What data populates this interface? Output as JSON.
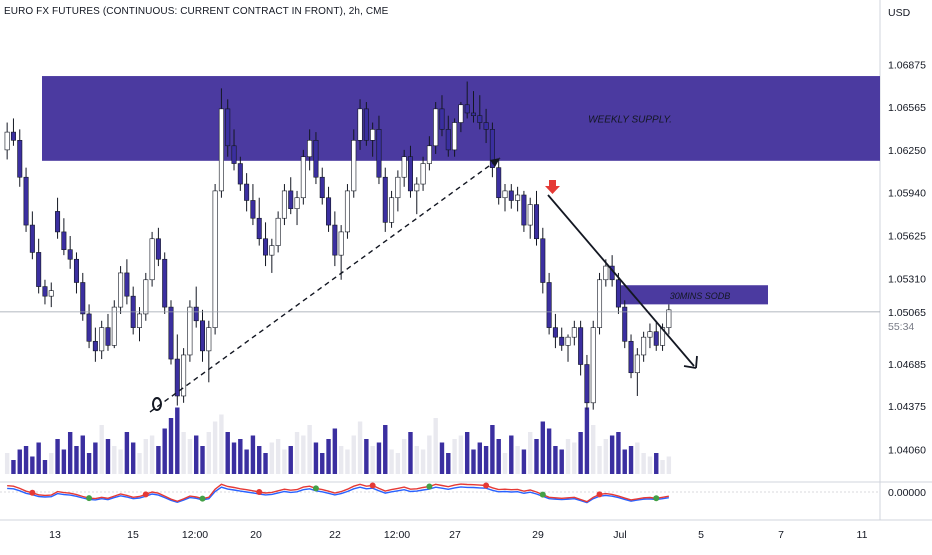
{
  "title": "EURO FX FUTURES (CONTINUOUS: CURRENT CONTRACT IN FRONT), 2h, CME",
  "currency": "USD",
  "colors": {
    "bull_body": "#ffffff",
    "bear_body": "#3b2fa0",
    "wick": "#131722",
    "zone": "#4b3aa0",
    "vol_bull": "#e9e9ef",
    "vol_bear": "#3b2fa0",
    "price_line": "#9aa0ab",
    "osc_red": "#e53935",
    "osc_blue": "#2962ff",
    "osc_green": "#43a047",
    "arrow_red": "#e53935"
  },
  "chart_data": {
    "type": "candlestick",
    "title": "EURO FX FUTURES (CONTINUOUS: CURRENT CONTRACT IN FRONT), 2h, CME",
    "ylabel": "USD",
    "ylim": [
      1.0385,
      1.072
    ],
    "yticks": [
      "1.06875",
      "1.06565",
      "1.06250",
      "1.05940",
      "1.05625",
      "1.05310",
      "1.04685",
      "1.04375",
      "1.04060"
    ],
    "xticks": [
      "13",
      "15",
      "12:00",
      "20",
      "22",
      "12:00",
      "27",
      "29",
      "Jul",
      "5",
      "7",
      "11"
    ],
    "last_price": "1.05065",
    "countdown": "55:34",
    "oscillator_label": "0.00000",
    "zones": [
      {
        "label": "WEEKLY SUPPLY.",
        "top": 1.0679,
        "bottom": 1.0617
      },
      {
        "label": "30MINS SODB",
        "top": 1.0526,
        "bottom": 1.0512
      }
    ],
    "ohlc": [
      [
        1.0625,
        1.0645,
        1.0618,
        1.0638
      ],
      [
        1.0638,
        1.0648,
        1.0628,
        1.0632
      ],
      [
        1.0632,
        1.064,
        1.0598,
        1.0605
      ],
      [
        1.0605,
        1.0612,
        1.0565,
        1.057
      ],
      [
        1.057,
        1.058,
        1.0545,
        1.055
      ],
      [
        1.055,
        1.056,
        1.052,
        1.0525
      ],
      [
        1.0525,
        1.053,
        1.0512,
        1.0518
      ],
      [
        1.0518,
        1.0528,
        1.051,
        1.0522
      ],
      [
        1.058,
        1.059,
        1.056,
        1.0565
      ],
      [
        1.0565,
        1.0575,
        1.0548,
        1.0552
      ],
      [
        1.0552,
        1.0562,
        1.0538,
        1.0545
      ],
      [
        1.0545,
        1.055,
        1.052,
        1.0528
      ],
      [
        1.0528,
        1.0535,
        1.05,
        1.0505
      ],
      [
        1.0505,
        1.0512,
        1.048,
        1.0485
      ],
      [
        1.0485,
        1.0495,
        1.047,
        1.0478
      ],
      [
        1.0478,
        1.05,
        1.0472,
        1.0495
      ],
      [
        1.0495,
        1.0505,
        1.0478,
        1.0482
      ],
      [
        1.0482,
        1.0515,
        1.048,
        1.051
      ],
      [
        1.051,
        1.054,
        1.0505,
        1.0535
      ],
      [
        1.0535,
        1.0545,
        1.0512,
        1.0518
      ],
      [
        1.0518,
        1.0525,
        1.049,
        1.0495
      ],
      [
        1.0495,
        1.051,
        1.0485,
        1.0505
      ],
      [
        1.0505,
        1.0535,
        1.05,
        1.053
      ],
      [
        1.053,
        1.0565,
        1.0525,
        1.056
      ],
      [
        1.056,
        1.0568,
        1.054,
        1.0545
      ],
      [
        1.0545,
        1.055,
        1.0505,
        1.051
      ],
      [
        1.051,
        1.0515,
        1.0468,
        1.0472
      ],
      [
        1.0472,
        1.049,
        1.0438,
        1.0445
      ],
      [
        1.0445,
        1.048,
        1.044,
        1.0475
      ],
      [
        1.0475,
        1.0515,
        1.047,
        1.051
      ],
      [
        1.051,
        1.0525,
        1.0495,
        1.05
      ],
      [
        1.05,
        1.0508,
        1.047,
        1.0478
      ],
      [
        1.0478,
        1.05,
        1.0455,
        1.0495
      ],
      [
        1.0495,
        1.06,
        1.049,
        1.0595
      ],
      [
        1.0595,
        1.067,
        1.059,
        1.0655
      ],
      [
        1.0655,
        1.0662,
        1.062,
        1.0628
      ],
      [
        1.0628,
        1.064,
        1.061,
        1.0615
      ],
      [
        1.0615,
        1.062,
        1.0595,
        1.06
      ],
      [
        1.06,
        1.0608,
        1.058,
        1.0588
      ],
      [
        1.0588,
        1.06,
        1.057,
        1.0575
      ],
      [
        1.0575,
        1.059,
        1.0555,
        1.056
      ],
      [
        1.056,
        1.0572,
        1.054,
        1.0548
      ],
      [
        1.0548,
        1.056,
        1.0535,
        1.0555
      ],
      [
        1.0555,
        1.058,
        1.055,
        1.0575
      ],
      [
        1.0575,
        1.06,
        1.057,
        1.0595
      ],
      [
        1.0595,
        1.0605,
        1.0578,
        1.0582
      ],
      [
        1.0582,
        1.0595,
        1.057,
        1.059
      ],
      [
        1.059,
        1.0625,
        1.0585,
        1.062
      ],
      [
        1.062,
        1.064,
        1.061,
        1.0632
      ],
      [
        1.0632,
        1.0638,
        1.06,
        1.0605
      ],
      [
        1.0605,
        1.0612,
        1.0585,
        1.059
      ],
      [
        1.059,
        1.0598,
        1.0565,
        1.057
      ],
      [
        1.057,
        1.058,
        1.054,
        1.0548
      ],
      [
        1.0548,
        1.057,
        1.053,
        1.0565
      ],
      [
        1.0565,
        1.06,
        1.056,
        1.0595
      ],
      [
        1.0595,
        1.064,
        1.059,
        1.0632
      ],
      [
        1.0632,
        1.0662,
        1.0625,
        1.0655
      ],
      [
        1.0655,
        1.066,
        1.0628,
        1.0632
      ],
      [
        1.0632,
        1.0645,
        1.062,
        1.064
      ],
      [
        1.064,
        1.065,
        1.06,
        1.0605
      ],
      [
        1.0605,
        1.0612,
        1.0565,
        1.0572
      ],
      [
        1.0572,
        1.0595,
        1.0568,
        1.059
      ],
      [
        1.059,
        1.061,
        1.058,
        1.0605
      ],
      [
        1.0605,
        1.0625,
        1.0598,
        1.062
      ],
      [
        1.062,
        1.0628,
        1.059,
        1.0595
      ],
      [
        1.0595,
        1.0605,
        1.0578,
        1.06
      ],
      [
        1.06,
        1.062,
        1.0595,
        1.0615
      ],
      [
        1.0615,
        1.0635,
        1.061,
        1.0628
      ],
      [
        1.0628,
        1.066,
        1.0622,
        1.0655
      ],
      [
        1.0655,
        1.0665,
        1.0635,
        1.064
      ],
      [
        1.064,
        1.065,
        1.062,
        1.0625
      ],
      [
        1.0625,
        1.0648,
        1.062,
        1.0645
      ],
      [
        1.0645,
        1.066,
        1.0638,
        1.0658
      ],
      [
        1.0658,
        1.0675,
        1.0648,
        1.0652
      ],
      [
        1.0652,
        1.0668,
        1.0645,
        1.065
      ],
      [
        1.065,
        1.0665,
        1.064,
        1.0645
      ],
      [
        1.0645,
        1.0655,
        1.063,
        1.064
      ],
      [
        1.064,
        1.0645,
        1.0605,
        1.0612
      ],
      [
        1.0612,
        1.0618,
        1.0585,
        1.059
      ],
      [
        1.059,
        1.06,
        1.058,
        1.0595
      ],
      [
        1.0595,
        1.06,
        1.0582,
        1.0588
      ],
      [
        1.0588,
        1.0598,
        1.058,
        1.0592
      ],
      [
        1.0592,
        1.0595,
        1.0565,
        1.057
      ],
      [
        1.057,
        1.059,
        1.056,
        1.0585
      ],
      [
        1.0585,
        1.0595,
        1.0555,
        1.056
      ],
      [
        1.056,
        1.0568,
        1.052,
        1.0528
      ],
      [
        1.0528,
        1.0535,
        1.049,
        1.0495
      ],
      [
        1.0495,
        1.0505,
        1.048,
        1.0488
      ],
      [
        1.0488,
        1.0495,
        1.0478,
        1.0482
      ],
      [
        1.0482,
        1.049,
        1.047,
        1.0488
      ],
      [
        1.0488,
        1.05,
        1.0482,
        1.0495
      ],
      [
        1.0495,
        1.05,
        1.046,
        1.0468
      ],
      [
        1.0468,
        1.0475,
        1.0435,
        1.044
      ],
      [
        1.044,
        1.05,
        1.0435,
        1.0495
      ],
      [
        1.0495,
        1.0535,
        1.049,
        1.053
      ],
      [
        1.053,
        1.0545,
        1.0525,
        1.054
      ],
      [
        1.054,
        1.0548,
        1.0525,
        1.053
      ],
      [
        1.053,
        1.0535,
        1.0505,
        1.051
      ],
      [
        1.051,
        1.0515,
        1.048,
        1.0485
      ],
      [
        1.0485,
        1.049,
        1.0458,
        1.0462
      ],
      [
        1.0462,
        1.048,
        1.0445,
        1.0475
      ],
      [
        1.0475,
        1.0492,
        1.047,
        1.0488
      ],
      [
        1.0488,
        1.0498,
        1.048,
        1.0492
      ],
      [
        1.0492,
        1.05,
        1.0478,
        1.0482
      ],
      [
        1.0482,
        1.0498,
        1.0478,
        1.0495
      ],
      [
        1.0495,
        1.0512,
        1.049,
        1.0508
      ]
    ],
    "volume": [
      0.3,
      0.2,
      0.35,
      0.4,
      0.25,
      0.45,
      0.2,
      0.3,
      0.5,
      0.35,
      0.6,
      0.4,
      0.55,
      0.3,
      0.45,
      0.7,
      0.5,
      0.4,
      0.35,
      0.6,
      0.45,
      0.3,
      0.5,
      0.55,
      0.4,
      0.65,
      0.8,
      0.95,
      0.6,
      0.5,
      0.55,
      0.4,
      0.6,
      0.75,
      0.85,
      0.6,
      0.45,
      0.5,
      0.35,
      0.55,
      0.4,
      0.3,
      0.45,
      0.5,
      0.35,
      0.4,
      0.6,
      0.55,
      0.7,
      0.45,
      0.3,
      0.5,
      0.65,
      0.4,
      0.35,
      0.55,
      0.75,
      0.5,
      0.4,
      0.45,
      0.7,
      0.35,
      0.3,
      0.5,
      0.6,
      0.4,
      0.35,
      0.55,
      0.8,
      0.45,
      0.3,
      0.5,
      0.55,
      0.6,
      0.35,
      0.45,
      0.4,
      0.7,
      0.5,
      0.3,
      0.55,
      0.4,
      0.35,
      0.6,
      0.5,
      0.75,
      0.65,
      0.4,
      0.35,
      0.5,
      0.45,
      0.6,
      0.95,
      0.7,
      0.4,
      0.5,
      0.55,
      0.6,
      0.35,
      0.4,
      0.45,
      0.3,
      0.25,
      0.3,
      0.2,
      0.25
    ]
  }
}
